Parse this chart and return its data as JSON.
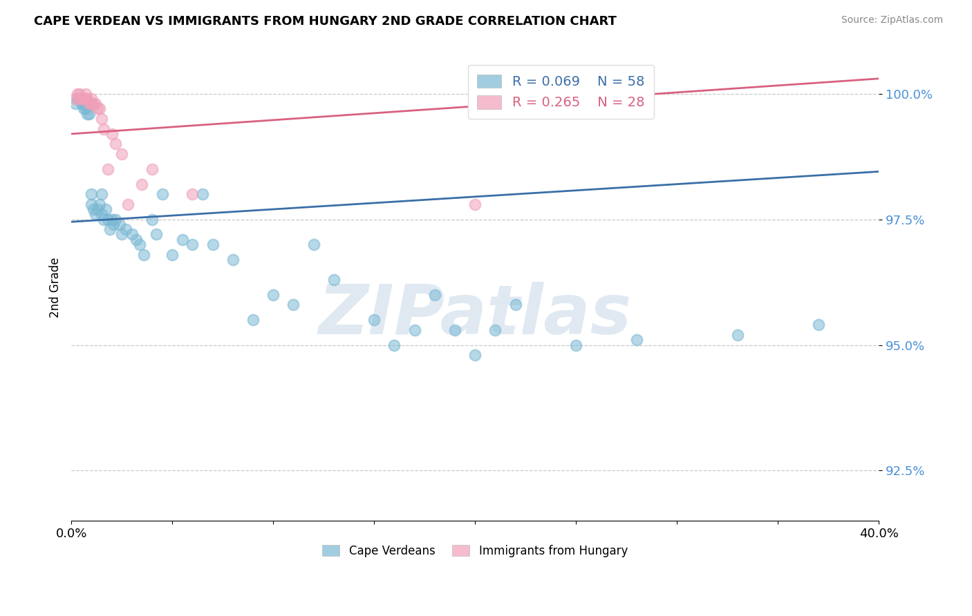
{
  "title": "CAPE VERDEAN VS IMMIGRANTS FROM HUNGARY 2ND GRADE CORRELATION CHART",
  "source": "Source: ZipAtlas.com",
  "ylabel": "2nd Grade",
  "xlim": [
    0.0,
    0.4
  ],
  "ylim": [
    0.915,
    1.008
  ],
  "yticks": [
    0.925,
    0.95,
    0.975,
    1.0
  ],
  "ytick_labels": [
    "92.5%",
    "95.0%",
    "97.5%",
    "100.0%"
  ],
  "xticks": [
    0.0,
    0.05,
    0.1,
    0.15,
    0.2,
    0.25,
    0.3,
    0.35,
    0.4
  ],
  "xtick_labels": [
    "0.0%",
    "",
    "",
    "",
    "",
    "",
    "",
    "",
    "40.0%"
  ],
  "blue_R": 0.069,
  "blue_N": 58,
  "pink_R": 0.265,
  "pink_N": 28,
  "blue_color": "#7bb8d4",
  "pink_color": "#f0a0b8",
  "blue_line_color": "#3a6fa8",
  "pink_line_color": "#d96080",
  "watermark": "ZIPatlas",
  "blue_line_x0": 0.0,
  "blue_line_y0": 0.9745,
  "blue_line_x1": 0.4,
  "blue_line_y1": 0.9845,
  "pink_line_x0": 0.0,
  "pink_line_y0": 0.992,
  "pink_line_x1": 0.4,
  "pink_line_y1": 1.003,
  "blue_scatter_x": [
    0.002,
    0.003,
    0.004,
    0.005,
    0.006,
    0.006,
    0.007,
    0.008,
    0.008,
    0.009,
    0.01,
    0.01,
    0.011,
    0.012,
    0.013,
    0.014,
    0.015,
    0.015,
    0.016,
    0.017,
    0.018,
    0.019,
    0.02,
    0.021,
    0.022,
    0.024,
    0.025,
    0.027,
    0.03,
    0.032,
    0.034,
    0.036,
    0.04,
    0.042,
    0.045,
    0.05,
    0.055,
    0.06,
    0.065,
    0.07,
    0.08,
    0.09,
    0.1,
    0.11,
    0.12,
    0.13,
    0.15,
    0.16,
    0.17,
    0.18,
    0.19,
    0.2,
    0.21,
    0.22,
    0.25,
    0.28,
    0.33,
    0.37
  ],
  "blue_scatter_y": [
    0.998,
    0.999,
    0.999,
    0.998,
    0.998,
    0.997,
    0.997,
    0.996,
    0.998,
    0.996,
    0.98,
    0.978,
    0.977,
    0.976,
    0.977,
    0.978,
    0.98,
    0.976,
    0.975,
    0.977,
    0.975,
    0.973,
    0.975,
    0.974,
    0.975,
    0.974,
    0.972,
    0.973,
    0.972,
    0.971,
    0.97,
    0.968,
    0.975,
    0.972,
    0.98,
    0.968,
    0.971,
    0.97,
    0.98,
    0.97,
    0.967,
    0.955,
    0.96,
    0.958,
    0.97,
    0.963,
    0.955,
    0.95,
    0.953,
    0.96,
    0.953,
    0.948,
    0.953,
    0.958,
    0.95,
    0.951,
    0.952,
    0.954
  ],
  "pink_scatter_x": [
    0.002,
    0.003,
    0.004,
    0.004,
    0.005,
    0.006,
    0.006,
    0.007,
    0.007,
    0.008,
    0.009,
    0.01,
    0.01,
    0.011,
    0.012,
    0.013,
    0.014,
    0.015,
    0.016,
    0.018,
    0.02,
    0.022,
    0.025,
    0.028,
    0.035,
    0.04,
    0.06,
    0.2
  ],
  "pink_scatter_y": [
    0.999,
    1.0,
    1.0,
    0.999,
    0.999,
    0.999,
    0.999,
    1.0,
    0.999,
    0.999,
    0.998,
    0.998,
    0.999,
    0.998,
    0.998,
    0.997,
    0.997,
    0.995,
    0.993,
    0.985,
    0.992,
    0.99,
    0.988,
    0.978,
    0.982,
    0.985,
    0.98,
    0.978
  ]
}
